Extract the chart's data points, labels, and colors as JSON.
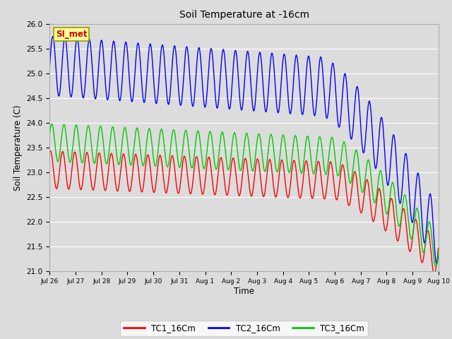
{
  "title": "Soil Temperature at -16cm",
  "xlabel": "Time",
  "ylabel": "Soil Temperature (C)",
  "ylim": [
    21.0,
    26.0
  ],
  "yticks": [
    21.0,
    21.5,
    22.0,
    22.5,
    23.0,
    23.5,
    24.0,
    24.5,
    25.0,
    25.5,
    26.0
  ],
  "bg_color": "#dcdcdc",
  "grid_color": "#ffffff",
  "annotation_text": "SI_met",
  "annotation_bg": "#ffff99",
  "annotation_border": "#999900",
  "annotation_text_color": "#cc0000",
  "line_colors": [
    "#ff0000",
    "#0000ff",
    "#00cc00"
  ],
  "line_labels": [
    "TC1_16Cm",
    "TC2_16Cm",
    "TC3_16Cm"
  ],
  "x_tick_labels": [
    "Jul 26",
    "Jul 27",
    "Jul 28",
    "Jul 29",
    "Jul 30",
    "Jul 31",
    "Aug 1",
    "Aug 2",
    "Aug 3",
    "Aug 4",
    "Aug 5",
    "Aug 6",
    "Aug 7",
    "Aug 8",
    "Aug 9",
    "Aug 10"
  ],
  "period": 0.47,
  "n_days": 15
}
